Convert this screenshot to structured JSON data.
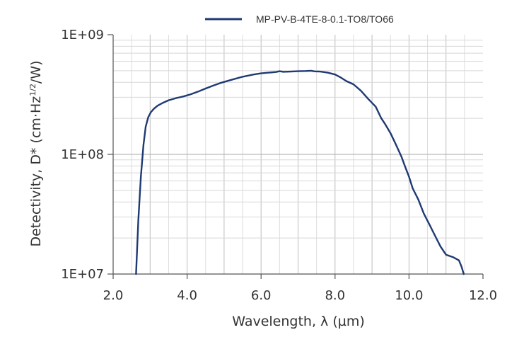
{
  "chart_data": {
    "type": "line",
    "xlabel": "Wavelength, λ (µm)",
    "ylabel": "Detectivity, D* (cm·Hz1/2/W)",
    "ylabel_parts": {
      "before": "Detectivity, D* (cm·Hz",
      "sup": "1/2",
      "after": "/W)"
    },
    "x_range": [
      2.0,
      12.0
    ],
    "y_range": [
      10000000,
      1000000000
    ],
    "y_scale": "log",
    "x_ticks": [
      "2.0",
      "4.0",
      "6.0",
      "8.0",
      "10.0",
      "12.0"
    ],
    "y_ticks": [
      "1E+07",
      "1E+08",
      "1E+09"
    ],
    "grid": true,
    "legend_position": "top",
    "series": [
      {
        "name": "MP-PV-B-4TE-8-0.1-TO8/TO66",
        "color": "#1f3a73",
        "x": [
          2.62,
          2.68,
          2.75,
          2.82,
          2.88,
          2.95,
          3.02,
          3.1,
          3.2,
          3.35,
          3.5,
          3.7,
          3.9,
          4.1,
          4.3,
          4.5,
          4.7,
          4.9,
          5.2,
          5.5,
          5.8,
          6.0,
          6.2,
          6.4,
          6.5,
          6.6,
          6.8,
          7.0,
          7.2,
          7.35,
          7.45,
          7.6,
          7.8,
          8.0,
          8.15,
          8.3,
          8.5,
          8.7,
          8.9,
          9.1,
          9.25,
          9.35,
          9.5,
          9.65,
          9.8,
          9.9,
          10.0,
          10.1,
          10.25,
          10.4,
          10.55,
          10.7,
          10.85,
          11.0,
          11.2,
          11.35,
          11.42,
          11.48
        ],
        "y": [
          10000000,
          28000000,
          65000000,
          120000000,
          170000000,
          205000000,
          225000000,
          240000000,
          255000000,
          270000000,
          283000000,
          295000000,
          305000000,
          318000000,
          335000000,
          355000000,
          375000000,
          395000000,
          420000000,
          445000000,
          465000000,
          475000000,
          482000000,
          488000000,
          495000000,
          490000000,
          492000000,
          495000000,
          497000000,
          500000000,
          494000000,
          492000000,
          482000000,
          465000000,
          440000000,
          410000000,
          385000000,
          340000000,
          290000000,
          250000000,
          200000000,
          180000000,
          150000000,
          120000000,
          95000000,
          78000000,
          65000000,
          52000000,
          42000000,
          32000000,
          26000000,
          21000000,
          17000000,
          14500000,
          13800000,
          13000000,
          11500000,
          10000000
        ]
      }
    ]
  }
}
